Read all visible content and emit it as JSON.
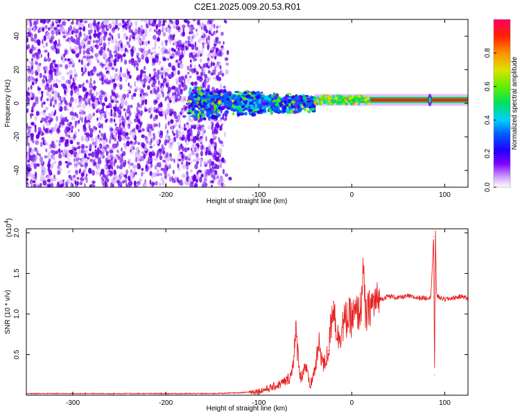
{
  "title": "C2E1.2025.009.20.53.R01",
  "colors": {
    "snr_line": "#e82020",
    "spectrogram_dots": "#6a00e8",
    "background": "#ffffff",
    "axes": "#000000"
  },
  "chart_data": [
    {
      "type": "heatmap",
      "name": "spectrogram",
      "xlabel": "Height of straight line (km)",
      "ylabel": "Frequency (Hz)",
      "xlim": [
        -350,
        125
      ],
      "ylim": [
        -50,
        50
      ],
      "xticks": [
        -300,
        -200,
        -100,
        0,
        100
      ],
      "yticks": [
        -40,
        -20,
        0,
        20,
        40
      ],
      "grid": false,
      "description_regions": [
        {
          "x_range": [
            -350,
            -130
          ],
          "y_range": [
            -50,
            50
          ],
          "level": 0.15,
          "pattern": "scattered noise"
        },
        {
          "x_range": [
            -175,
            -40
          ],
          "y_center": 0,
          "y_halfwidth": 10,
          "level": 0.4,
          "pattern": "cluster band"
        },
        {
          "x_range": [
            -40,
            125
          ],
          "y_center": 2,
          "y_halfwidth": 3,
          "level": 0.8,
          "pattern": "narrow line"
        }
      ],
      "colorbar": {
        "label": "Normalized spectral amplitude",
        "range": [
          0,
          1
        ],
        "ticks": [
          "0.0",
          "0.2",
          "0.4",
          "0.6",
          "0.8"
        ],
        "tick_values": [
          0,
          0.2,
          0.4,
          0.6,
          0.8
        ],
        "stops": [
          "#ffffff",
          "#c080ff",
          "#6000e0",
          "#0000ff",
          "#00e0ff",
          "#00e000",
          "#e0e000",
          "#ff8000",
          "#ff0000",
          "#ff0060"
        ]
      }
    },
    {
      "type": "line",
      "name": "snr",
      "xlabel": "Height of straight line (km)",
      "ylabel": "SNR (10 * v/v)",
      "y_exponent_label": "(x10",
      "y_exponent": "4",
      "y_exponent_close": ")",
      "xlim": [
        -350,
        125
      ],
      "ylim": [
        0,
        2.05
      ],
      "xticks": [
        -300,
        -200,
        -100,
        0,
        100
      ],
      "yticks": [
        0.5,
        1.0,
        1.5,
        2.0
      ],
      "ytick_labels": [
        "0.5",
        "1.0",
        "1.5",
        "2.0"
      ],
      "grid": false,
      "x": [
        -350,
        -300,
        -250,
        -200,
        -150,
        -120,
        -100,
        -90,
        -80,
        -70,
        -65,
        -60,
        -55,
        -50,
        -45,
        -40,
        -35,
        -30,
        -25,
        -20,
        -15,
        -10,
        -5,
        0,
        5,
        10,
        12,
        15,
        20,
        25,
        30,
        35,
        40,
        50,
        60,
        70,
        80,
        85,
        88,
        89,
        90,
        91,
        92,
        95,
        100,
        110,
        120,
        125
      ],
      "y": [
        0.02,
        0.02,
        0.02,
        0.02,
        0.02,
        0.03,
        0.05,
        0.08,
        0.12,
        0.18,
        0.25,
        0.75,
        0.2,
        0.38,
        0.1,
        0.3,
        0.62,
        0.35,
        0.55,
        1.15,
        0.7,
        0.85,
        0.95,
        0.95,
        1.0,
        1.05,
        1.58,
        0.95,
        1.1,
        1.15,
        1.18,
        1.2,
        1.22,
        1.2,
        1.22,
        1.2,
        1.2,
        1.21,
        1.95,
        0.25,
        2.05,
        1.3,
        1.22,
        1.2,
        1.18,
        1.2,
        1.22,
        1.18
      ]
    }
  ]
}
